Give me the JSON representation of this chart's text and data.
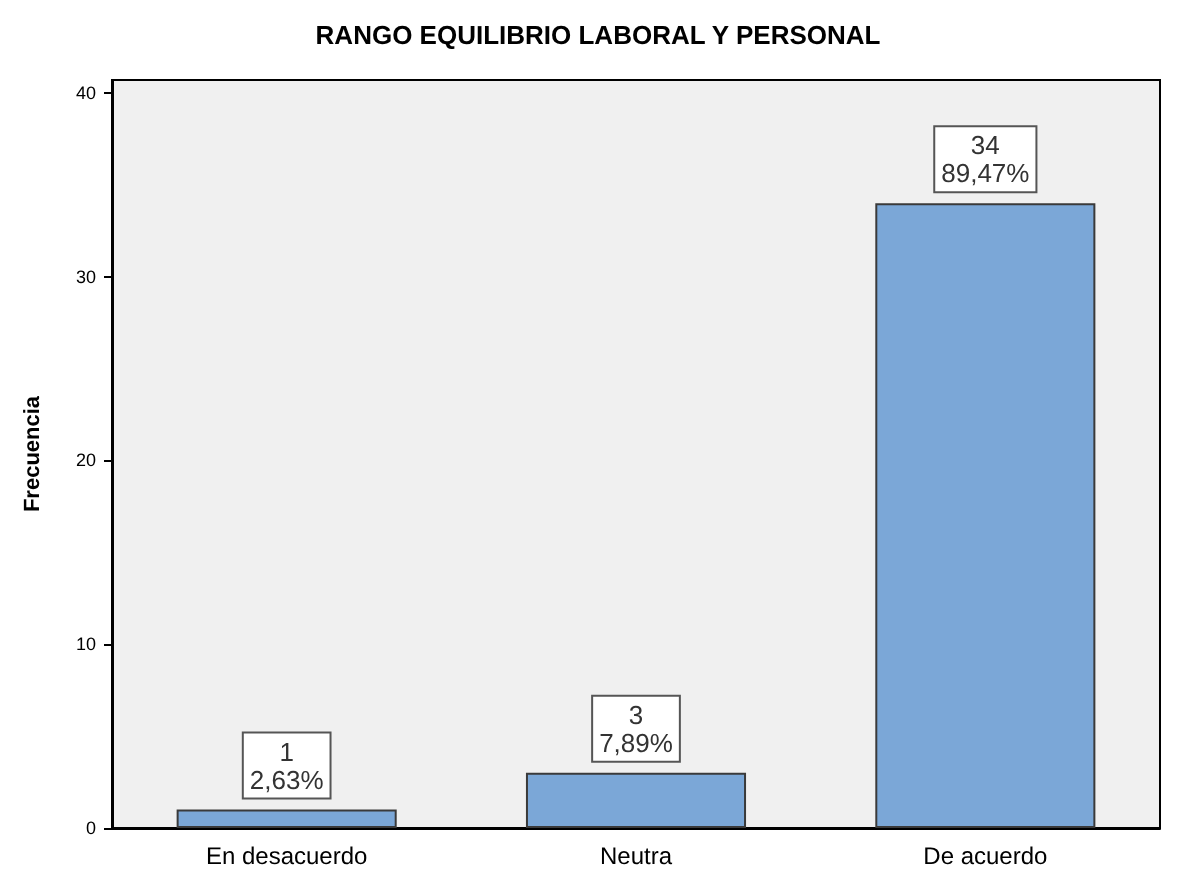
{
  "chart_data": {
    "type": "bar",
    "title": "RANGO EQUILIBRIO LABORAL Y PERSONAL",
    "ylabel": "Frecuencia",
    "categories": [
      "En desacuerdo",
      "Neutra",
      "De acuerdo"
    ],
    "values": [
      1,
      3,
      34
    ],
    "value_labels": [
      "1\n2,63%",
      "3\n7,89%",
      "34\n89,47%"
    ],
    "color": "#7ba7d7",
    "ylim": [
      0,
      40.7
    ],
    "yticks": [
      0,
      10,
      20,
      30,
      40
    ],
    "grid": false
  }
}
